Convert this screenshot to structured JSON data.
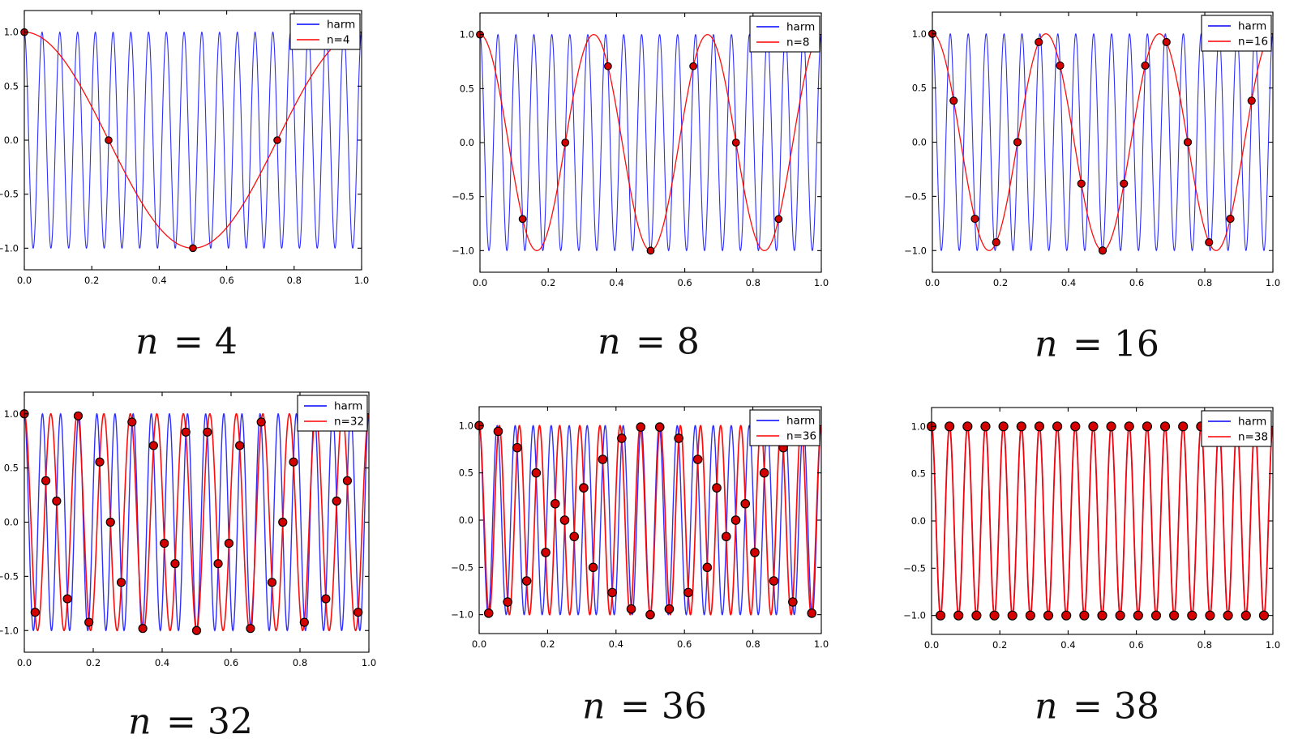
{
  "figure": {
    "background": "#ffffff",
    "description": "Six subplots of a harmonic signal (19 cycles on [0,1]) sampled with n points, showing the aliased reconstruction",
    "harmonic_frequency": 19,
    "sampling_rates": [
      4,
      8,
      16,
      32,
      36,
      38
    ]
  },
  "colors": {
    "harmonic": "#0000ff",
    "alias": "#ff0000",
    "sample_fill": "#d40000",
    "sample_edge": "#000000",
    "axes": "#000000",
    "legend_bg": "#ffffff"
  },
  "chart_data": [
    {
      "type": "line",
      "title": "n = 4",
      "caption_variable": "n",
      "caption_rest": "= 4",
      "legend": {
        "position": "upper right",
        "entries": [
          "harm",
          "n=4"
        ]
      },
      "xlim": [
        0,
        1
      ],
      "ylim": [
        -1.2,
        1.2
      ],
      "grid": false,
      "xticks": {
        "values": [
          0,
          0.2,
          0.4,
          0.6,
          0.8,
          1
        ],
        "labels": [
          "0.0",
          "0.2",
          "0.4",
          "0.6",
          "0.8",
          "1.0"
        ]
      },
      "yticks": {
        "values": [
          1,
          0.5,
          0,
          -0.5,
          -1
        ],
        "labels": [
          "1.0",
          "0.5",
          "0.0",
          "−0.5",
          "−1.0"
        ]
      },
      "series": [
        {
          "name": "harm",
          "kind": "curve",
          "color": "#0000ff",
          "function": "cos(2*pi*19*t)",
          "frequency": 19
        },
        {
          "name": "n=4",
          "kind": "curve",
          "color": "#ff0000",
          "function": "cos(2*pi*1*t)",
          "frequency": 1
        },
        {
          "name": "samples",
          "kind": "scatter",
          "n": 4,
          "x": [
            0.0,
            0.25,
            0.5,
            0.75
          ],
          "y": [
            1.0,
            0.0,
            -1.0,
            0.0
          ]
        }
      ]
    },
    {
      "type": "line",
      "title": "n = 8",
      "caption_variable": "n",
      "caption_rest": "= 8",
      "legend": {
        "position": "upper right",
        "entries": [
          "harm",
          "n=8"
        ]
      },
      "xlim": [
        0,
        1
      ],
      "ylim": [
        -1.2,
        1.2
      ],
      "grid": false,
      "xticks": {
        "values": [
          0,
          0.2,
          0.4,
          0.6,
          0.8,
          1
        ],
        "labels": [
          "0.0",
          "0.2",
          "0.4",
          "0.6",
          "0.8",
          "1.0"
        ]
      },
      "yticks": {
        "values": [
          1,
          0.5,
          0,
          -0.5,
          -1
        ],
        "labels": [
          "1.0",
          "0.5",
          "0.0",
          "−0.5",
          "−1.0"
        ]
      },
      "series": [
        {
          "name": "harm",
          "kind": "curve",
          "color": "#0000ff",
          "function": "cos(2*pi*19*t)",
          "frequency": 19
        },
        {
          "name": "n=8",
          "kind": "curve",
          "color": "#ff0000",
          "function": "cos(2*pi*3*t)",
          "frequency": 3
        },
        {
          "name": "samples",
          "kind": "scatter",
          "n": 8,
          "x": [
            0.0,
            0.125,
            0.25,
            0.375,
            0.5,
            0.625,
            0.75,
            0.875
          ],
          "y": [
            1.0,
            -0.7071,
            0.0,
            0.7071,
            -1.0,
            0.7071,
            0.0,
            -0.7071
          ]
        }
      ]
    },
    {
      "type": "line",
      "title": "n = 16",
      "caption_variable": "n",
      "caption_rest": "= 16",
      "legend": {
        "position": "upper right",
        "entries": [
          "harm",
          "n=16"
        ]
      },
      "xlim": [
        0,
        1
      ],
      "ylim": [
        -1.2,
        1.2
      ],
      "grid": false,
      "xticks": {
        "values": [
          0,
          0.2,
          0.4,
          0.6,
          0.8,
          1
        ],
        "labels": [
          "0.0",
          "0.2",
          "0.4",
          "0.6",
          "0.8",
          "1.0"
        ]
      },
      "yticks": {
        "values": [
          1,
          0.5,
          0,
          -0.5,
          -1
        ],
        "labels": [
          "1.0",
          "0.5",
          "0.0",
          "−0.5",
          "−1.0"
        ]
      },
      "series": [
        {
          "name": "harm",
          "kind": "curve",
          "color": "#0000ff",
          "function": "cos(2*pi*19*t)",
          "frequency": 19
        },
        {
          "name": "n=16",
          "kind": "curve",
          "color": "#ff0000",
          "function": "cos(2*pi*3*t)",
          "frequency": 3
        },
        {
          "name": "samples",
          "kind": "scatter",
          "n": 16,
          "x": [
            0.0,
            0.0625,
            0.125,
            0.1875,
            0.25,
            0.3125,
            0.375,
            0.4375,
            0.5,
            0.5625,
            0.625,
            0.6875,
            0.75,
            0.8125,
            0.875,
            0.9375
          ],
          "y": [
            1.0,
            0.3827,
            -0.7071,
            -0.9239,
            0.0,
            0.9239,
            0.7071,
            -0.3827,
            -1.0,
            -0.3827,
            0.7071,
            0.9239,
            0.0,
            -0.9239,
            -0.7071,
            0.3827
          ]
        }
      ]
    },
    {
      "type": "line",
      "title": "n = 32",
      "caption_variable": "n",
      "caption_rest": "= 32",
      "legend": {
        "position": "upper right",
        "entries": [
          "harm",
          "n=32"
        ]
      },
      "xlim": [
        0,
        1
      ],
      "ylim": [
        -1.2,
        1.2
      ],
      "grid": false,
      "xticks": {
        "values": [
          0,
          0.2,
          0.4,
          0.6,
          0.8,
          1
        ],
        "labels": [
          "0.0",
          "0.2",
          "0.4",
          "0.6",
          "0.8",
          "1.0"
        ]
      },
      "yticks": {
        "values": [
          1,
          0.5,
          0,
          -0.5,
          -1
        ],
        "labels": [
          "1.0",
          "0.5",
          "0.0",
          "−0.5",
          "−1.0"
        ]
      },
      "series": [
        {
          "name": "harm",
          "kind": "curve",
          "color": "#0000ff",
          "function": "cos(2*pi*19*t)",
          "frequency": 19
        },
        {
          "name": "n=32",
          "kind": "curve",
          "color": "#ff0000",
          "function": "cos(2*pi*13*t)",
          "frequency": 13
        },
        {
          "name": "samples",
          "kind": "scatter",
          "n": 32,
          "x": [
            0.0,
            0.0313,
            0.0625,
            0.0938,
            0.125,
            0.1563,
            0.1875,
            0.2188,
            0.25,
            0.2813,
            0.3125,
            0.3438,
            0.375,
            0.4063,
            0.4375,
            0.4688,
            0.5,
            0.5313,
            0.5625,
            0.5938,
            0.625,
            0.6563,
            0.6875,
            0.7188,
            0.75,
            0.7813,
            0.8125,
            0.8438,
            0.875,
            0.9063,
            0.9375,
            0.9688
          ],
          "y": [
            1.0,
            -0.8315,
            0.3827,
            0.1951,
            -0.7071,
            0.9808,
            -0.9239,
            0.5556,
            0.0,
            -0.5556,
            0.9239,
            -0.9808,
            0.7071,
            -0.1951,
            -0.3827,
            0.8315,
            -1.0,
            0.8315,
            -0.3827,
            -0.1951,
            0.7071,
            -0.9808,
            0.9239,
            -0.5556,
            0.0,
            0.5556,
            -0.9239,
            0.9808,
            -0.7071,
            0.1951,
            0.3827,
            -0.8315
          ]
        }
      ]
    },
    {
      "type": "line",
      "title": "n = 36",
      "caption_variable": "n",
      "caption_rest": "= 36",
      "legend": {
        "position": "upper right",
        "entries": [
          "harm",
          "n=36"
        ]
      },
      "xlim": [
        0,
        1
      ],
      "ylim": [
        -1.2,
        1.2
      ],
      "grid": false,
      "xticks": {
        "values": [
          0,
          0.2,
          0.4,
          0.6,
          0.8,
          1
        ],
        "labels": [
          "0.0",
          "0.2",
          "0.4",
          "0.6",
          "0.8",
          "1.0"
        ]
      },
      "yticks": {
        "values": [
          1,
          0.5,
          0,
          -0.5,
          -1
        ],
        "labels": [
          "1.0",
          "0.5",
          "0.0",
          "−0.5",
          "−1.0"
        ]
      },
      "series": [
        {
          "name": "harm",
          "kind": "curve",
          "color": "#0000ff",
          "function": "cos(2*pi*19*t)",
          "frequency": 19
        },
        {
          "name": "n=36",
          "kind": "curve",
          "color": "#ff0000",
          "function": "cos(2*pi*17*t)",
          "frequency": 17
        },
        {
          "name": "samples",
          "kind": "scatter",
          "n": 36,
          "x": [
            0.0,
            0.0278,
            0.0556,
            0.0833,
            0.1111,
            0.1389,
            0.1667,
            0.1944,
            0.2222,
            0.25,
            0.2778,
            0.3056,
            0.3333,
            0.3611,
            0.3889,
            0.4167,
            0.4444,
            0.4722,
            0.5,
            0.5278,
            0.5556,
            0.5833,
            0.6111,
            0.6389,
            0.6667,
            0.6944,
            0.7222,
            0.75,
            0.7778,
            0.8056,
            0.8333,
            0.8611,
            0.8889,
            0.9167,
            0.9444,
            0.9722
          ],
          "y": [
            1.0,
            -0.9848,
            0.9397,
            -0.866,
            0.766,
            -0.6428,
            0.5,
            -0.342,
            0.1736,
            0.0,
            -0.1736,
            0.342,
            -0.5,
            0.6428,
            -0.766,
            0.866,
            -0.9397,
            0.9848,
            -1.0,
            0.9848,
            -0.9397,
            0.866,
            -0.766,
            0.6428,
            -0.5,
            0.342,
            -0.1736,
            0.0,
            0.1736,
            -0.342,
            0.5,
            -0.6428,
            0.766,
            -0.866,
            0.9397,
            -0.9848
          ]
        }
      ]
    },
    {
      "type": "line",
      "title": "n = 38",
      "caption_variable": "n",
      "caption_rest": "= 38",
      "legend": {
        "position": "upper right",
        "entries": [
          "harm",
          "n=38"
        ]
      },
      "xlim": [
        0,
        1
      ],
      "ylim": [
        -1.2,
        1.2
      ],
      "grid": false,
      "xticks": {
        "values": [
          0,
          0.2,
          0.4,
          0.6,
          0.8,
          1
        ],
        "labels": [
          "0.0",
          "0.2",
          "0.4",
          "0.6",
          "0.8",
          "1.0"
        ]
      },
      "yticks": {
        "values": [
          1,
          0.5,
          0,
          -0.5,
          -1
        ],
        "labels": [
          "1.0",
          "0.5",
          "0.0",
          "−0.5",
          "−1.0"
        ]
      },
      "series": [
        {
          "name": "harm",
          "kind": "curve",
          "color": "#0000ff",
          "function": "cos(2*pi*19*t)",
          "frequency": 19
        },
        {
          "name": "n=38",
          "kind": "curve",
          "color": "#ff0000",
          "function": "cos(2*pi*19*t)",
          "frequency": 19
        },
        {
          "name": "samples",
          "kind": "scatter",
          "n": 38,
          "x": [
            0.0,
            0.0263,
            0.0526,
            0.0789,
            0.1053,
            0.1316,
            0.1579,
            0.1842,
            0.2105,
            0.2368,
            0.2632,
            0.2895,
            0.3158,
            0.3421,
            0.3684,
            0.3947,
            0.4211,
            0.4474,
            0.4737,
            0.5,
            0.5263,
            0.5526,
            0.5789,
            0.6053,
            0.6316,
            0.6579,
            0.6842,
            0.7105,
            0.7368,
            0.7632,
            0.7895,
            0.8158,
            0.8421,
            0.8684,
            0.8947,
            0.9211,
            0.9474,
            0.9737
          ],
          "y": [
            1.0,
            -1.0,
            1.0,
            -1.0,
            1.0,
            -1.0,
            1.0,
            -1.0,
            1.0,
            -1.0,
            1.0,
            -1.0,
            1.0,
            -1.0,
            1.0,
            -1.0,
            1.0,
            -1.0,
            1.0,
            -1.0,
            1.0,
            -1.0,
            1.0,
            -1.0,
            1.0,
            -1.0,
            1.0,
            -1.0,
            1.0,
            -1.0,
            1.0,
            -1.0,
            1.0,
            -1.0,
            1.0,
            -1.0,
            1.0,
            -1.0
          ]
        }
      ]
    }
  ]
}
